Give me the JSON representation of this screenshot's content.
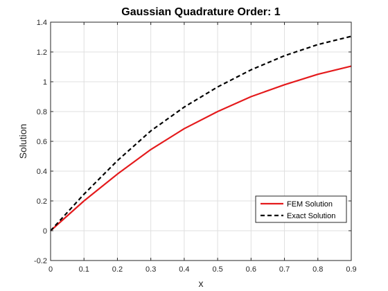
{
  "chart_data": {
    "type": "line",
    "title": "Gaussian Quadrature Order: 1",
    "xlabel": "x",
    "ylabel": "Solution",
    "xlim": [
      0,
      0.9
    ],
    "ylim": [
      -0.2,
      1.4
    ],
    "xticks": [
      0,
      0.1,
      0.2,
      0.3,
      0.4,
      0.5,
      0.6,
      0.7,
      0.8,
      0.9
    ],
    "xtick_labels": [
      "0",
      "0.1",
      "0.2",
      "0.3",
      "0.4",
      "0.5",
      "0.6",
      "0.7",
      "0.8",
      "0.9"
    ],
    "yticks": [
      -0.2,
      0,
      0.2,
      0.4,
      0.6,
      0.8,
      1,
      1.2,
      1.4
    ],
    "ytick_labels": [
      "-0.2",
      "0",
      "0.2",
      "0.4",
      "0.6",
      "0.8",
      "1",
      "1.2",
      "1.4"
    ],
    "grid": true,
    "legend_position": "bottom-right",
    "series": [
      {
        "name": "FEM Solution",
        "color": "#e41a1c",
        "line_style": "solid",
        "x": [
          0,
          0.1,
          0.2,
          0.3,
          0.4,
          0.5,
          0.6,
          0.7,
          0.8,
          0.9
        ],
        "y": [
          0,
          0.2,
          0.38,
          0.545,
          0.685,
          0.8,
          0.9,
          0.98,
          1.05,
          1.105
        ]
      },
      {
        "name": "Exact Solution",
        "color": "#000000",
        "line_style": "dashed",
        "x": [
          0,
          0.1,
          0.2,
          0.3,
          0.4,
          0.5,
          0.6,
          0.7,
          0.8,
          0.9
        ],
        "y": [
          0,
          0.245,
          0.47,
          0.67,
          0.83,
          0.965,
          1.08,
          1.175,
          1.25,
          1.305
        ]
      }
    ]
  }
}
